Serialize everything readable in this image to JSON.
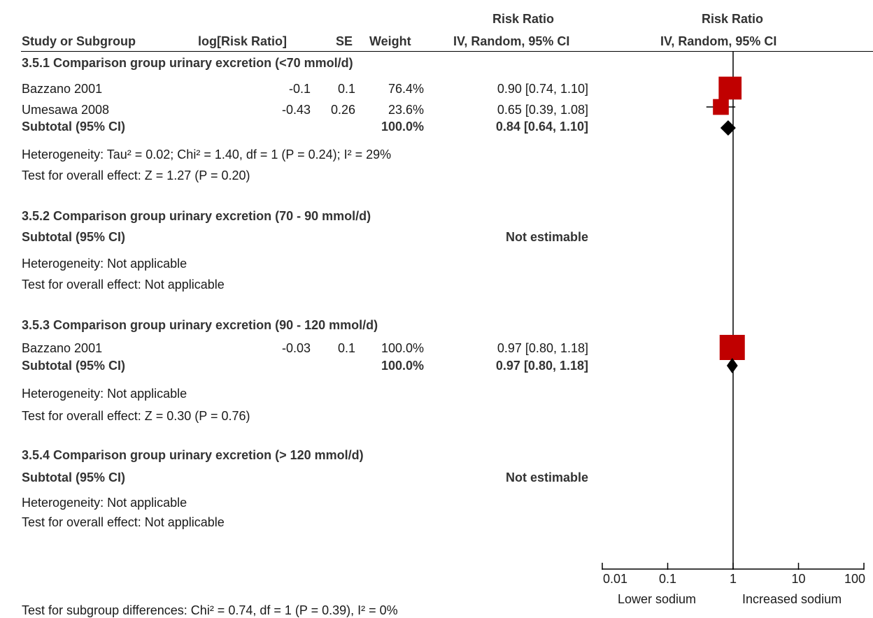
{
  "header": {
    "col_study": "Study or Subgroup",
    "col_logrr": "log[Risk Ratio]",
    "col_se": "SE",
    "col_weight": "Weight",
    "col_rr_top": "Risk Ratio",
    "col_rr_bottom": "IV, Random, 95% CI",
    "plot_top": "Risk Ratio",
    "plot_bottom": "IV, Random, 95% CI"
  },
  "groups": [
    {
      "title": "3.5.1 Comparison group urinary excretion (<70 mmol/d)",
      "rows": [
        {
          "study": "Bazzano 2001",
          "logrr": "-0.1",
          "se": "0.1",
          "weight": "76.4%",
          "ci": "0.90 [0.74, 1.10]"
        },
        {
          "study": "Umesawa 2008",
          "logrr": "-0.43",
          "se": "0.26",
          "weight": "23.6%",
          "ci": "0.65 [0.39, 1.08]"
        }
      ],
      "subtotal": {
        "label": "Subtotal (95% CI)",
        "weight": "100.0%",
        "ci": "0.84 [0.64, 1.10]"
      },
      "heterogeneity": "Heterogeneity: Tau² = 0.02; Chi² = 1.40, df = 1 (P = 0.24); I² = 29%",
      "overall": "Test for overall effect: Z = 1.27 (P = 0.20)"
    },
    {
      "title": "3.5.2 Comparison group urinary excretion (70 - 90 mmol/d)",
      "rows": [],
      "subtotal": {
        "label": "Subtotal (95% CI)",
        "weight": "",
        "ci": "Not estimable"
      },
      "heterogeneity": "Heterogeneity: Not applicable",
      "overall": "Test for overall effect: Not applicable"
    },
    {
      "title": "3.5.3 Comparison group urinary excretion (90 - 120 mmol/d)",
      "rows": [
        {
          "study": "Bazzano 2001",
          "logrr": "-0.03",
          "se": "0.1",
          "weight": "100.0%",
          "ci": "0.97 [0.80, 1.18]"
        }
      ],
      "subtotal": {
        "label": "Subtotal (95% CI)",
        "weight": "100.0%",
        "ci": "0.97 [0.80, 1.18]"
      },
      "heterogeneity": "Heterogeneity: Not applicable",
      "overall": "Test for overall effect: Z = 0.30 (P = 0.76)"
    },
    {
      "title": "3.5.4 Comparison group urinary excretion (> 120 mmol/d)",
      "rows": [],
      "subtotal": {
        "label": "Subtotal (95% CI)",
        "weight": "",
        "ci": "Not estimable"
      },
      "heterogeneity": "Heterogeneity: Not applicable",
      "overall": "Test for overall effect: Not applicable"
    }
  ],
  "footer": {
    "subgroup_test": "Test for subgroup differences: Chi² = 0.74, df = 1 (P = 0.39), I² = 0%"
  },
  "chart_data": {
    "type": "forest",
    "scale": "log",
    "x_ticks": [
      0.01,
      0.1,
      1,
      10,
      100
    ],
    "x_tick_labels": [
      "0.01",
      "0.1",
      "1",
      "10",
      "100"
    ],
    "xlim": [
      0.01,
      100
    ],
    "reference_line": 1,
    "favours_left": "Lower sodium",
    "favours_right": "Increased sodium",
    "colors": {
      "study_marker": "#c00000",
      "summary_diamond": "#000000"
    },
    "studies": [
      {
        "group": "3.5.1",
        "study": "Bazzano 2001",
        "rr": 0.9,
        "lower": 0.74,
        "upper": 1.1,
        "weight": 76.4
      },
      {
        "group": "3.5.1",
        "study": "Umesawa 2008",
        "rr": 0.65,
        "lower": 0.39,
        "upper": 1.08,
        "weight": 23.6
      },
      {
        "group": "3.5.3",
        "study": "Bazzano 2001",
        "rr": 0.97,
        "lower": 0.8,
        "upper": 1.18,
        "weight": 100.0
      }
    ],
    "subtotals": [
      {
        "group": "3.5.1",
        "rr": 0.84,
        "lower": 0.64,
        "upper": 1.1
      },
      {
        "group": "3.5.3",
        "rr": 0.97,
        "lower": 0.8,
        "upper": 1.18
      }
    ]
  }
}
